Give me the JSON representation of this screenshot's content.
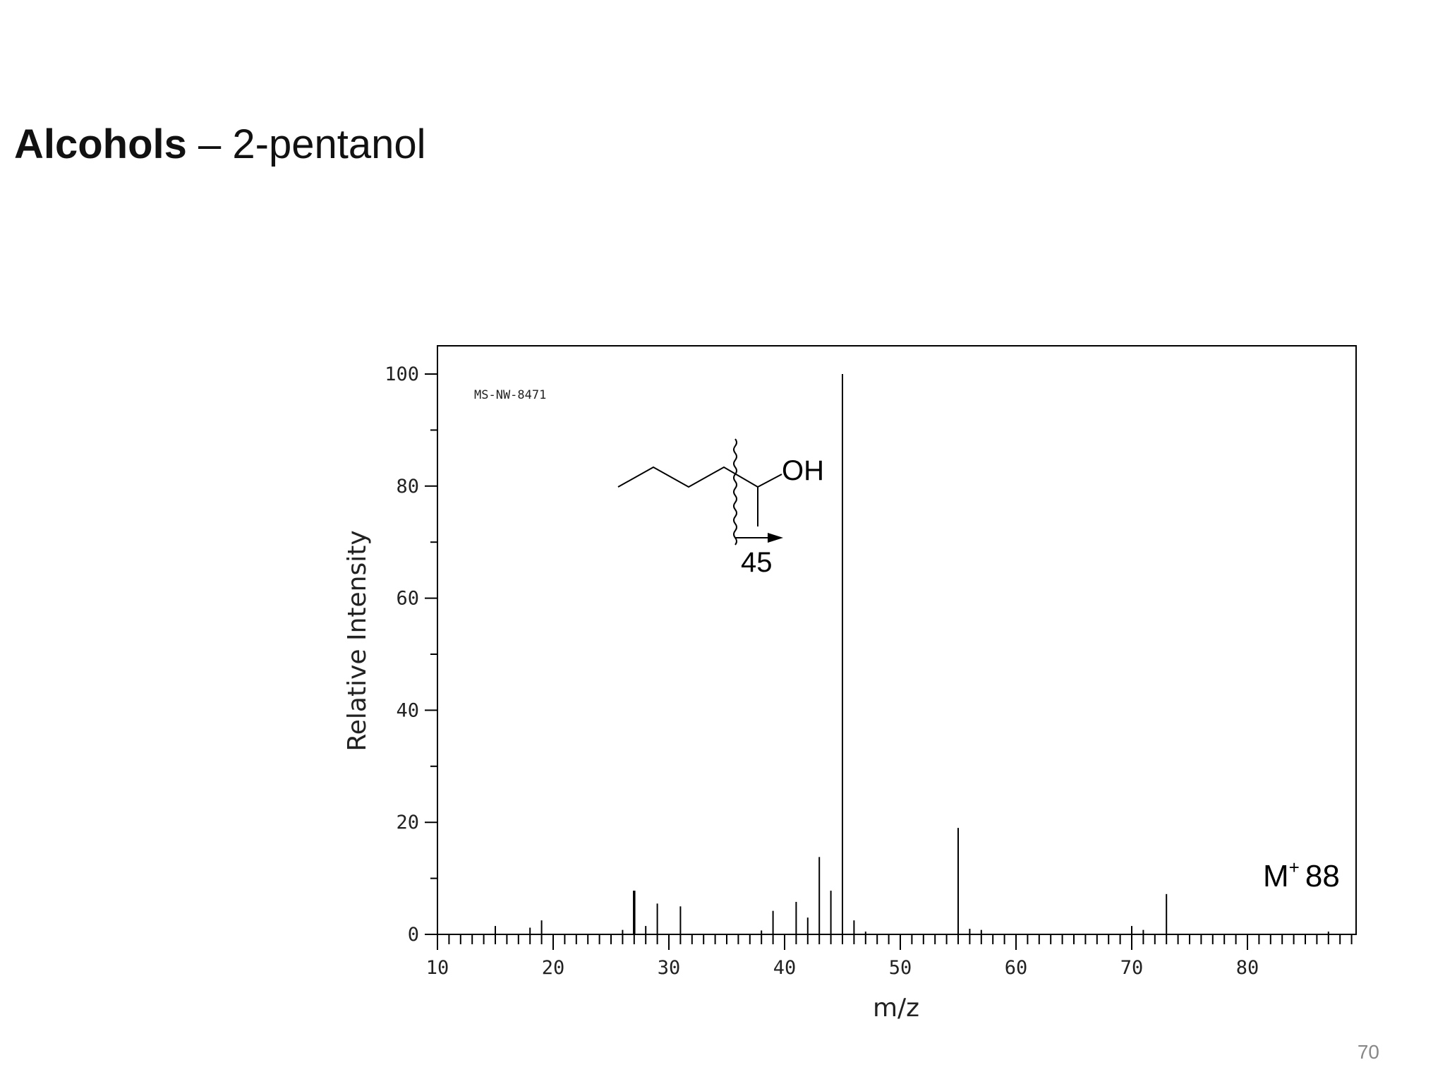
{
  "slide": {
    "title_bold": "Alcohols",
    "title_rest": " – 2-pentanol",
    "page_number": "70"
  },
  "chart_data": {
    "type": "bar",
    "spectrum_code": "MS-NW-8471",
    "xlabel": "m/z",
    "ylabel": "Relative Intensity",
    "xlim": [
      10,
      90
    ],
    "ylim": [
      0,
      105
    ],
    "x_tick_labels": [
      "10",
      "20",
      "30",
      "40",
      "50",
      "60",
      "70",
      "80"
    ],
    "y_tick_labels": [
      "0",
      "20",
      "40",
      "60",
      "80",
      "100"
    ],
    "grid": false,
    "peaks": [
      {
        "mz": 15,
        "intensity": 1.5
      },
      {
        "mz": 18,
        "intensity": 1.2
      },
      {
        "mz": 19,
        "intensity": 2.5
      },
      {
        "mz": 26,
        "intensity": 0.8
      },
      {
        "mz": 27,
        "intensity": 7.8
      },
      {
        "mz": 28,
        "intensity": 1.5
      },
      {
        "mz": 29,
        "intensity": 5.5
      },
      {
        "mz": 31,
        "intensity": 5.0
      },
      {
        "mz": 38,
        "intensity": 0.7
      },
      {
        "mz": 39,
        "intensity": 4.2
      },
      {
        "mz": 41,
        "intensity": 5.8
      },
      {
        "mz": 42,
        "intensity": 3.0
      },
      {
        "mz": 43,
        "intensity": 13.8
      },
      {
        "mz": 44,
        "intensity": 7.8
      },
      {
        "mz": 45,
        "intensity": 100
      },
      {
        "mz": 46,
        "intensity": 2.5
      },
      {
        "mz": 47,
        "intensity": 0.5
      },
      {
        "mz": 55,
        "intensity": 19.0
      },
      {
        "mz": 56,
        "intensity": 1.0
      },
      {
        "mz": 57,
        "intensity": 0.8
      },
      {
        "mz": 70,
        "intensity": 1.5
      },
      {
        "mz": 71,
        "intensity": 0.8
      },
      {
        "mz": 73,
        "intensity": 7.2
      },
      {
        "mz": 87,
        "intensity": 0.5
      }
    ],
    "structure": {
      "group_label": "OH",
      "fragment_label": "45"
    },
    "annotation": {
      "molecular_ion_symbol": "M",
      "molecular_ion_charge": "+",
      "molecular_ion_value": "88"
    }
  }
}
